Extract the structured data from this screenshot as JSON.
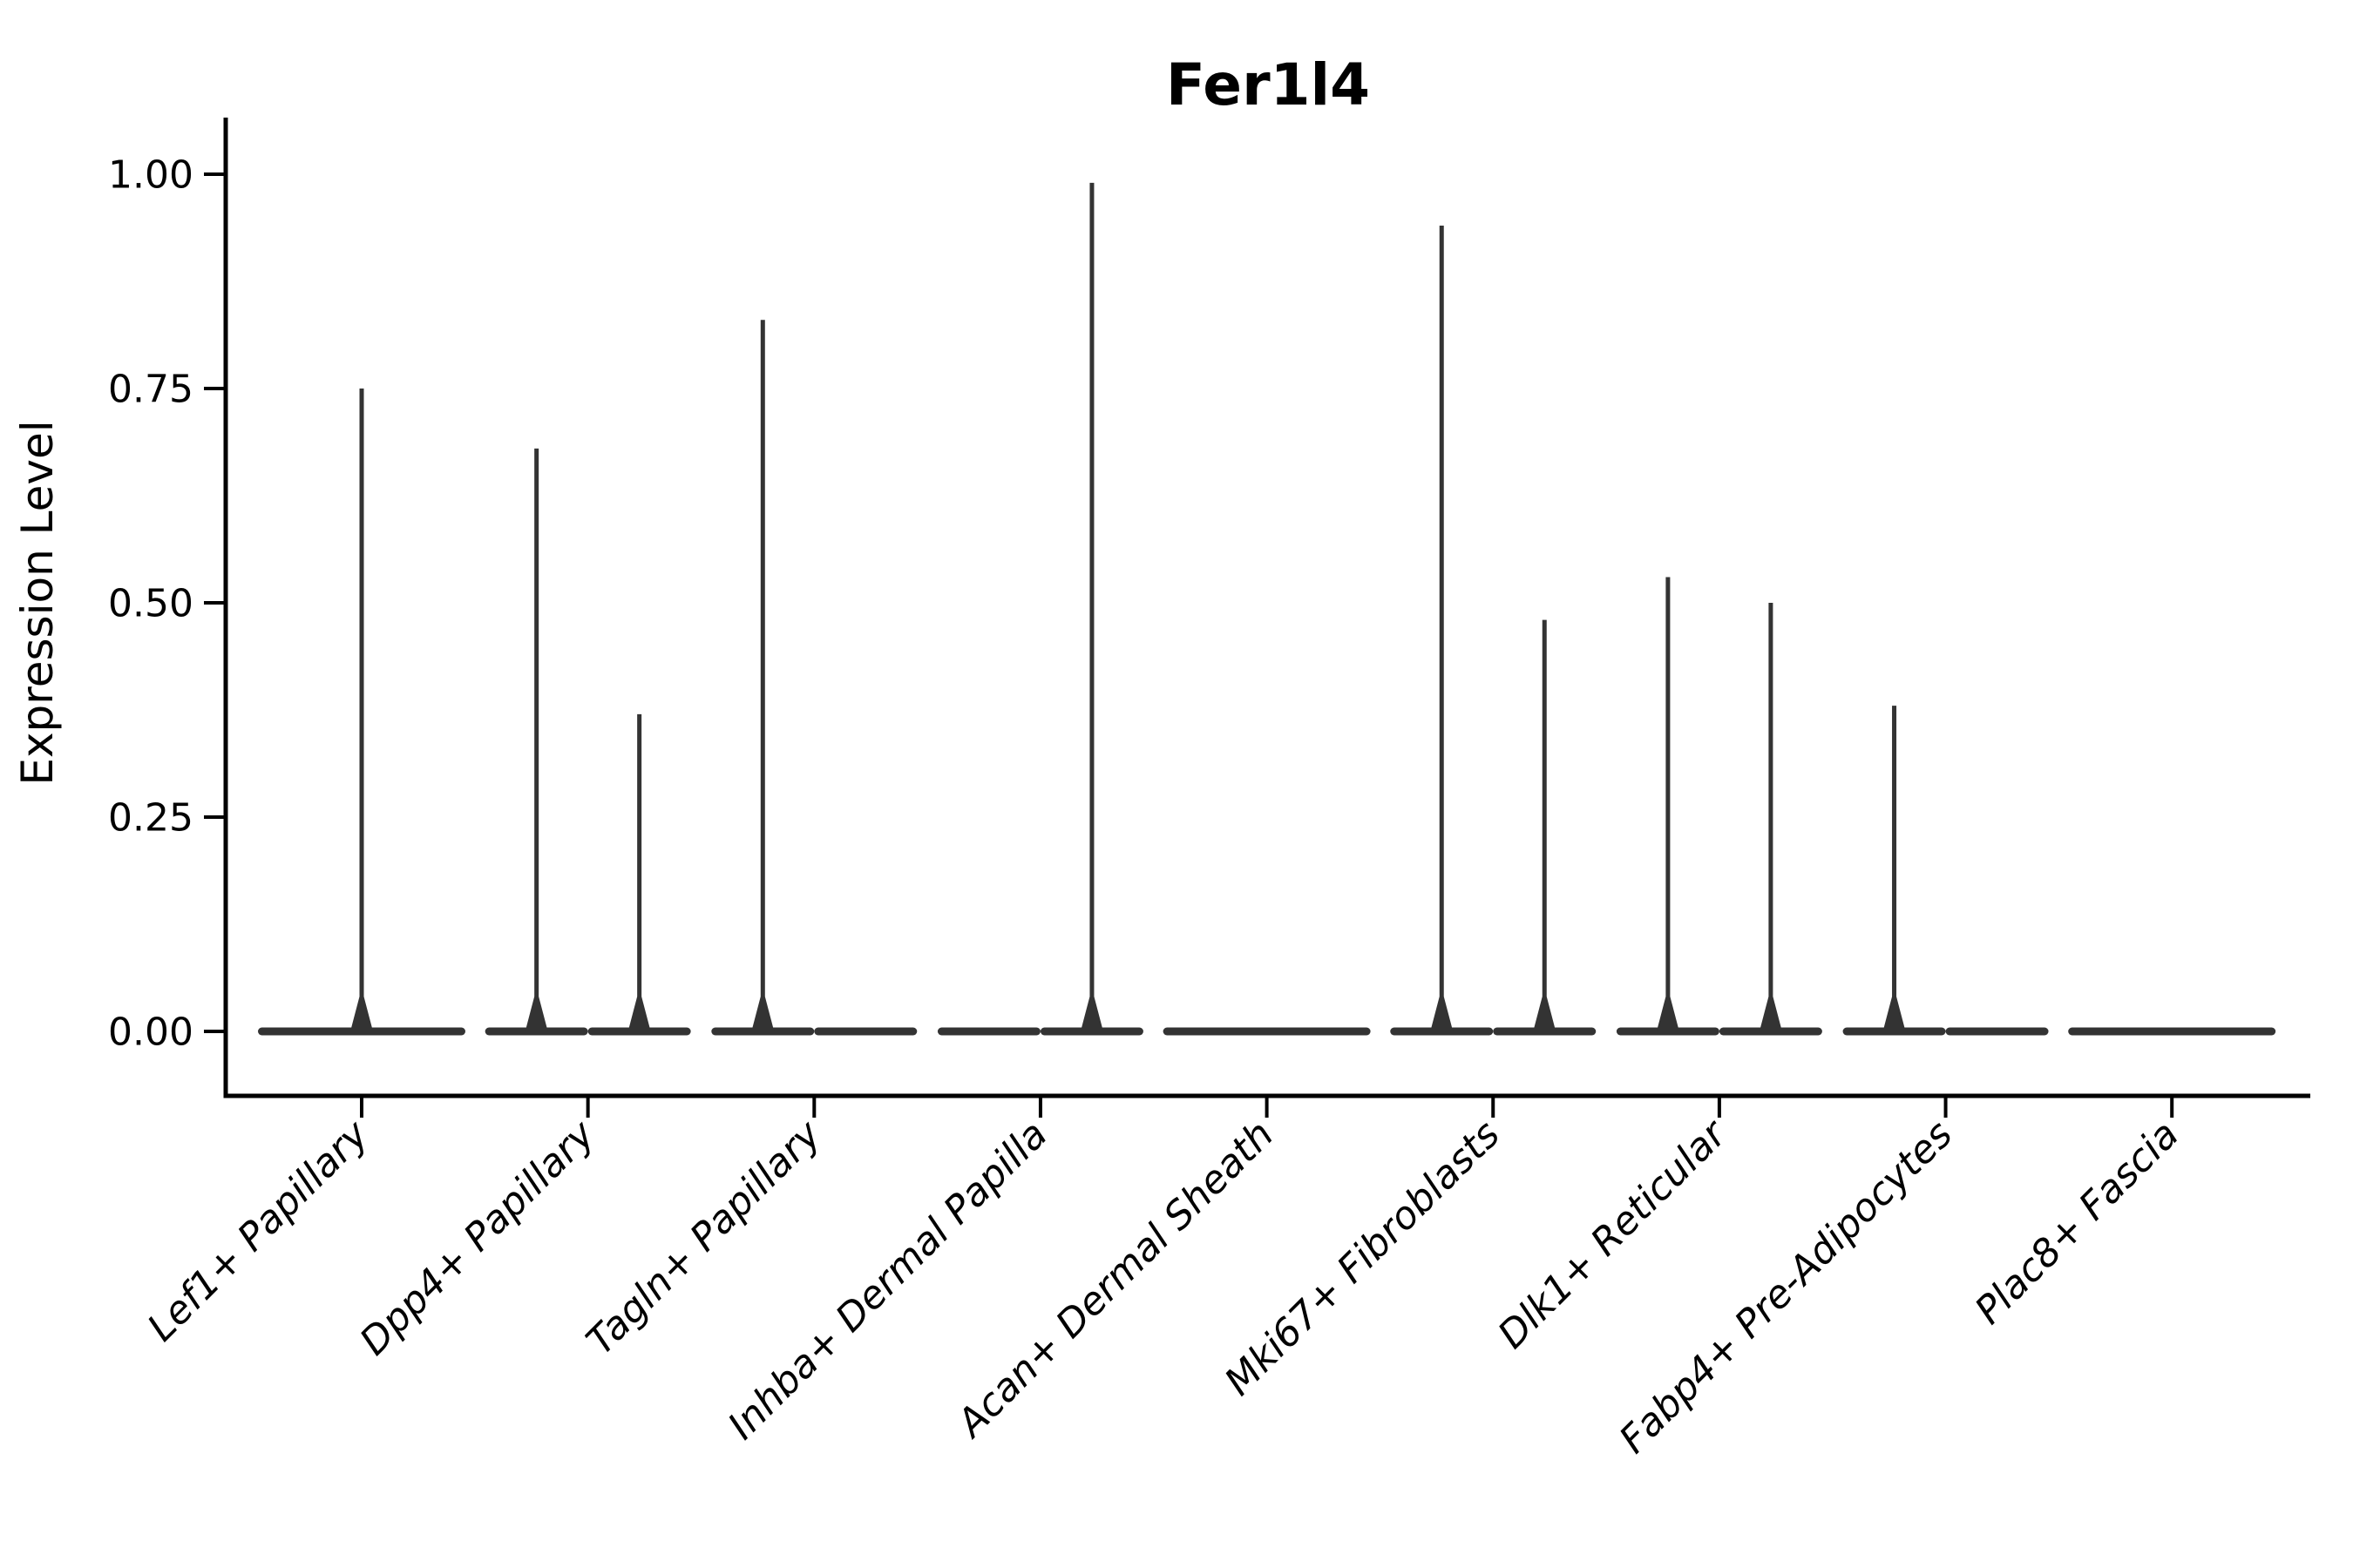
{
  "chart_data": {
    "type": "violin",
    "title": "Fer1l4",
    "xlabel": "",
    "ylabel": "Expression Level",
    "ylim": [
      0,
      1.0
    ],
    "yticks": [
      "0.00",
      "0.25",
      "0.50",
      "0.75",
      "1.00"
    ],
    "legend": "none",
    "grid": false,
    "categories": [
      "Lef1+ Papillary",
      "Dpp4+ Papillary",
      "Tagln+ Papillary",
      "Inhba+ Dermal Papilla",
      "Acan+ Dermal Sheath",
      "Mki67+ Fibroblasts",
      "Dlk1+ Reticular",
      "Fabp4+ Pre-Adipocytes",
      "Plac8+ Fascia"
    ],
    "series": [
      {
        "category": "Lef1+ Papillary",
        "violins": [
          {
            "side": "full",
            "max_expression": 0.75
          }
        ]
      },
      {
        "category": "Dpp4+ Papillary",
        "violins": [
          {
            "side": "left",
            "max_expression": 0.68
          },
          {
            "side": "right",
            "max_expression": 0.37
          }
        ]
      },
      {
        "category": "Tagln+ Papillary",
        "violins": [
          {
            "side": "left",
            "max_expression": 0.83
          },
          {
            "side": "right",
            "max_expression": 0
          }
        ]
      },
      {
        "category": "Inhba+ Dermal Papilla",
        "violins": [
          {
            "side": "left",
            "max_expression": 0
          },
          {
            "side": "right",
            "max_expression": 0.99
          }
        ]
      },
      {
        "category": "Acan+ Dermal Sheath",
        "violins": [
          {
            "side": "full",
            "max_expression": 0
          }
        ]
      },
      {
        "category": "Mki67+ Fibroblasts",
        "violins": [
          {
            "side": "left",
            "max_expression": 0.94
          },
          {
            "side": "right",
            "max_expression": 0.48
          }
        ]
      },
      {
        "category": "Dlk1+ Reticular",
        "violins": [
          {
            "side": "left",
            "max_expression": 0.53
          },
          {
            "side": "right",
            "max_expression": 0.5
          }
        ]
      },
      {
        "category": "Fabp4+ Pre-Adipocytes",
        "violins": [
          {
            "side": "left",
            "max_expression": 0.38
          },
          {
            "side": "right",
            "max_expression": 0
          }
        ]
      },
      {
        "category": "Plac8+ Fascia",
        "violins": [
          {
            "side": "full",
            "max_expression": 0
          }
        ]
      }
    ],
    "colors": {
      "violin": "#333333",
      "axis": "#000000",
      "background": "#ffffff"
    }
  }
}
